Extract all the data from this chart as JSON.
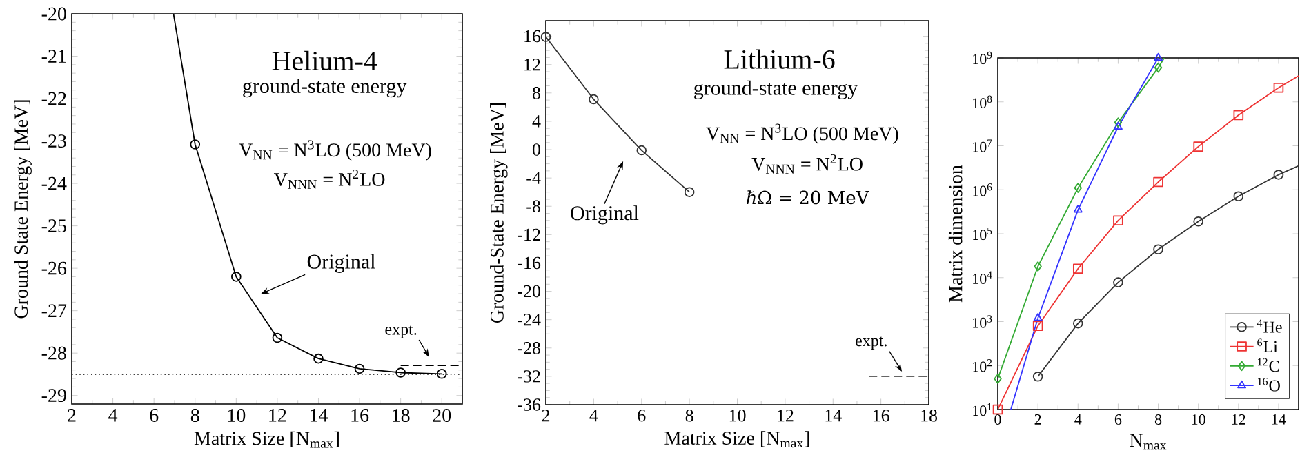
{
  "chart_data": [
    {
      "type": "line",
      "title": "Helium-4",
      "subtitle": "ground-state energy",
      "xlabel": "Matrix Size [N$_{max}$]",
      "ylabel": "Ground State Energy [MeV]",
      "xlim": [
        2,
        21
      ],
      "ylim": [
        -29.2,
        -20
      ],
      "xticks": [
        2,
        4,
        6,
        8,
        10,
        12,
        14,
        16,
        18,
        20
      ],
      "yticks": [
        -29,
        -28,
        -27,
        -26,
        -25,
        -24,
        -23,
        -22,
        -21,
        -20
      ],
      "marker": "circle",
      "line_style": "solid",
      "series": [
        {
          "color": "#000000",
          "x": [
            8,
            10,
            12,
            14,
            16,
            18,
            20
          ],
          "values": [
            -23.08,
            -26.2,
            -27.64,
            -28.13,
            -28.37,
            -28.46,
            -28.49
          ]
        },
        {
          "color": "#000000",
          "x": [
            6.95,
            8
          ],
          "values": [
            -20,
            -23.08
          ],
          "marker": "none"
        },
        {
          "color": "#000000",
          "x": [
            18,
            21
          ],
          "values": [
            -28.29,
            -28.29
          ],
          "marker": "none",
          "line_style": "dashed"
        }
      ],
      "ref_lines": [
        {
          "axis": "y",
          "value": -28.5,
          "color": "#000000",
          "line_style": "dotted"
        }
      ],
      "annotations": [
        "Original",
        "expt.",
        "V$_{NN}$ = N$^{3}$LO (500 MeV)",
        "V$_{NNN}$ = N$^{2}$LO"
      ]
    },
    {
      "type": "line",
      "title": "Lithium-6",
      "subtitle": "ground-state energy",
      "xlabel": "Matrix Size [N$_{max}$]",
      "ylabel": "Ground-State Energy [MeV]",
      "xlim": [
        2,
        18
      ],
      "ylim": [
        -36,
        18.2
      ],
      "xticks": [
        2,
        4,
        6,
        8,
        10,
        12,
        14,
        16,
        18
      ],
      "yticks": [
        -36,
        -32,
        -28,
        -24,
        -20,
        -16,
        -12,
        -8,
        -4,
        0,
        4,
        8,
        12,
        16
      ],
      "marker": "circle",
      "line_style": "solid",
      "series": [
        {
          "color": "#333333",
          "x": [
            2,
            4,
            6,
            8
          ],
          "values": [
            15.9,
            7.1,
            -0.1,
            -6.0
          ]
        },
        {
          "color": "#333333",
          "x": [
            15.5,
            18
          ],
          "values": [
            -32,
            -32
          ],
          "marker": "none",
          "line_style": "dashed"
        }
      ],
      "annotations": [
        "Original",
        "expt.",
        "V$_{NN}$ = N$^{3}$LO (500 MeV)",
        "V$_{NNN}$ = N$^{2}$LO",
        "ℏΩ = 20 MeV"
      ]
    },
    {
      "type": "line",
      "xlabel": "N$_{max}$",
      "ylabel": "Matrix dimension",
      "log": "y",
      "xlim": [
        0,
        15
      ],
      "ylim": [
        10,
        1000000000
      ],
      "xticks": [
        0,
        2,
        4,
        6,
        8,
        10,
        12,
        14
      ],
      "yticks": [
        {
          "value": 10,
          "label": "10$^{1}$"
        },
        {
          "value": 100,
          "label": "10$^{2}$"
        },
        {
          "value": 1000,
          "label": "10$^{3}$"
        },
        {
          "value": 10000,
          "label": "10$^{4}$"
        },
        {
          "value": 100000,
          "label": "10$^{5}$"
        },
        {
          "value": 1000000,
          "label": "10$^{6}$"
        },
        {
          "value": 10000000,
          "label": "10$^{7}$"
        },
        {
          "value": 100000000,
          "label": "10$^{8}$"
        },
        {
          "value": 1000000000,
          "label": "10$^{9}$"
        }
      ],
      "line_style": "solid",
      "legend": "bottom right",
      "series": [
        {
          "name": "$^{4}$He",
          "color": "#333333",
          "marker": "circle",
          "x": [
            2,
            4,
            6,
            8,
            10,
            12,
            14
          ],
          "values": [
            56,
            910,
            7800,
            44000,
            190000,
            710000,
            2200000
          ]
        },
        {
          "name": "$^{6}$Li",
          "color": "#ee3333",
          "marker": "square",
          "x": [
            0,
            2,
            4,
            6,
            8,
            10,
            12,
            14
          ],
          "values": [
            10,
            800,
            16000,
            200000,
            1500000,
            9600000,
            50000000,
            210000000
          ]
        },
        {
          "name": "$^{12}$C",
          "color": "#33aa33",
          "marker": "diamond",
          "x": [
            0,
            2,
            4,
            6,
            8
          ],
          "values": [
            50,
            18000,
            1100000,
            34000000,
            600000000
          ]
        },
        {
          "name": "$^{16}$O",
          "color": "#3333ff",
          "marker": "triangle",
          "x": [
            2,
            4,
            6,
            8
          ],
          "values": [
            1200,
            350000,
            27000000,
            1000000000
          ]
        },
        {
          "color": "#333333",
          "marker": "none",
          "x": [
            14,
            15
          ],
          "values": [
            2200000,
            3500000
          ]
        },
        {
          "color": "#ee3333",
          "marker": "none",
          "x": [
            14,
            15
          ],
          "values": [
            210000000,
            390000000
          ]
        },
        {
          "color": "#33aa33",
          "marker": "none",
          "x": [
            8,
            8.3
          ],
          "values": [
            600000000,
            1000000000
          ]
        },
        {
          "color": "#3333ff",
          "marker": "none",
          "x": [
            0.65,
            2
          ],
          "values": [
            10,
            1200
          ]
        }
      ]
    }
  ]
}
